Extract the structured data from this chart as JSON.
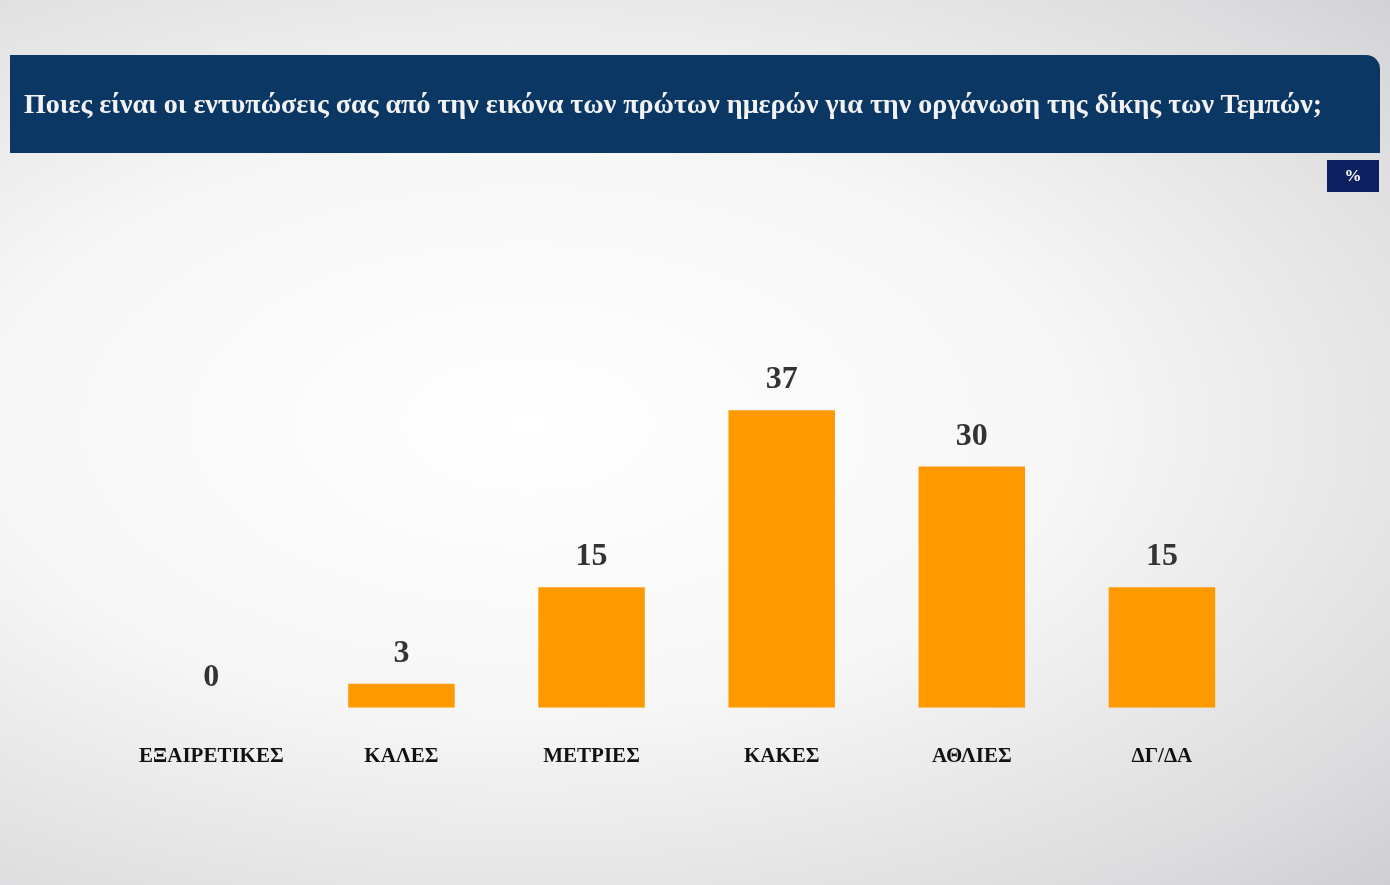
{
  "chart_data": {
    "type": "bar",
    "title": "Ποιες είναι οι εντυπώσεις σας από την εικόνα των πρώτων ημερών για την οργάνωση της δίκης των Τεμπών;",
    "categories": [
      "ΕΞΑΙΡΕΤΙΚΕΣ",
      "ΚΑΛΕΣ",
      "ΜΕΤΡΙΕΣ",
      "ΚΑΚΕΣ",
      "ΑΘΛΙΕΣ",
      "ΔΓ/ΔΑ"
    ],
    "values": [
      0,
      3,
      15,
      37,
      30,
      15
    ],
    "color": "#ff9900",
    "data_labels": true,
    "annotations": [
      "%"
    ]
  }
}
